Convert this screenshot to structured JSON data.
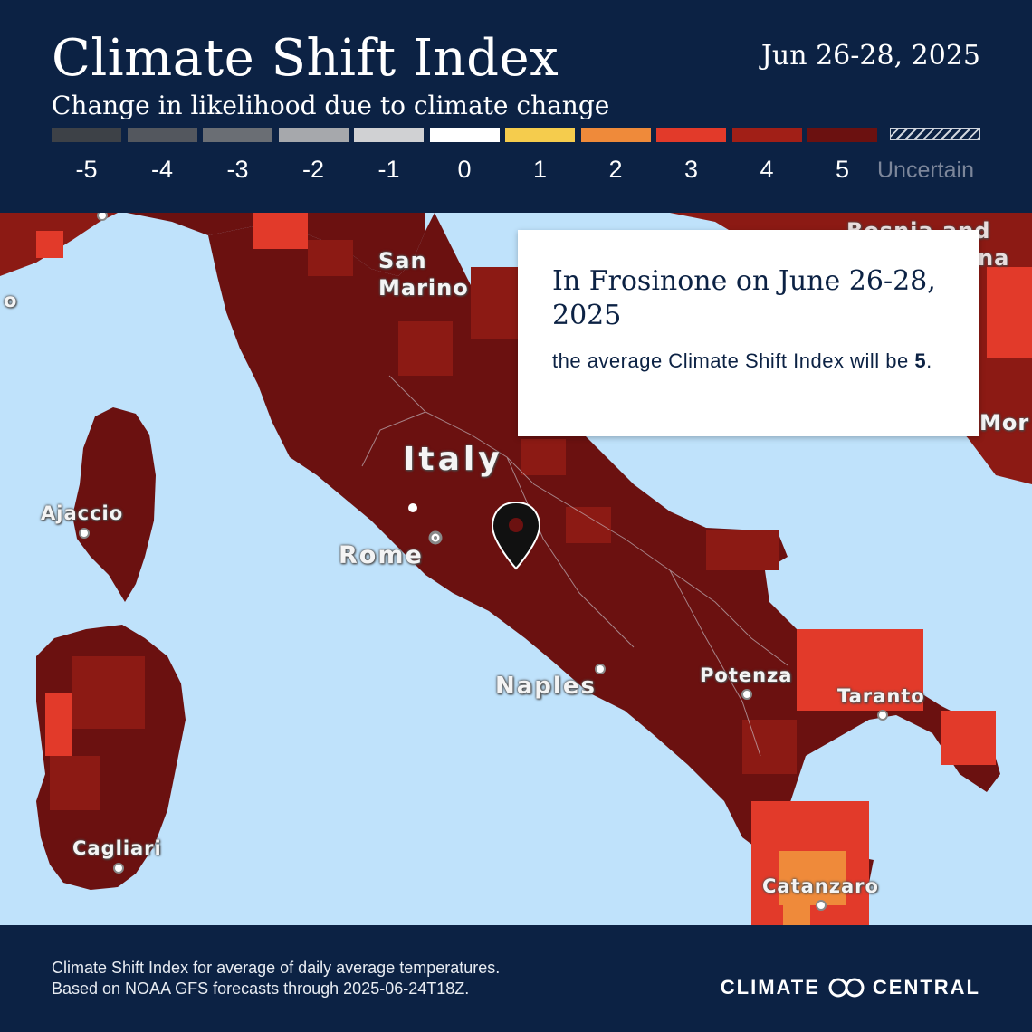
{
  "header": {
    "title": "Climate Shift Index",
    "subtitle": "Change in likelihood due to climate change",
    "date_range": "Jun 26-28, 2025"
  },
  "legend": {
    "items": [
      {
        "label": "-5",
        "color": "#3d4147"
      },
      {
        "label": "-4",
        "color": "#53575e"
      },
      {
        "label": "-3",
        "color": "#6a6e74"
      },
      {
        "label": "-2",
        "color": "#a6a8ac"
      },
      {
        "label": "-1",
        "color": "#d0d1d3"
      },
      {
        "label": "0",
        "color": "#ffffff"
      },
      {
        "label": "1",
        "color": "#f5cc4d"
      },
      {
        "label": "2",
        "color": "#ef8a3a"
      },
      {
        "label": "3",
        "color": "#e23a2a"
      },
      {
        "label": "4",
        "color": "#a11f17"
      },
      {
        "label": "5",
        "color": "#6b1110"
      }
    ],
    "uncertain_label": "Uncertain"
  },
  "map": {
    "colors": {
      "sea": "#bfe2fb",
      "csi5": "#6b1110",
      "csi4": "#8c1a14",
      "csi3": "#e23a2a",
      "csi2": "#ef8a3a"
    },
    "places": {
      "san_marino": "San\nMarino",
      "bosnia": "Bosnia and\nHerzegovina",
      "italy": "Italy",
      "ajaccio": "Ajaccio",
      "rome": "Rome",
      "naples": "Naples",
      "potenza": "Potenza",
      "taranto": "Taranto",
      "cagliari": "Cagliari",
      "catanzaro": "Catanzaro",
      "montenegro_partial": "Mor",
      "left_edge_partial": "o"
    },
    "marker_icon": "location-pin-icon"
  },
  "info_box": {
    "heading": "In Frosinone on June 26-28, 2025",
    "text_prefix": "the average Climate Shift Index will be ",
    "value": "5",
    "text_suffix": "."
  },
  "footer": {
    "line1": "Climate Shift Index for average of daily average temperatures.",
    "line2": "Based on NOAA GFS forecasts through 2025-06-24T18Z.",
    "brand_left": "CLIMATE",
    "brand_right": "CENTRAL",
    "brand_icon": "climate-central-logo-icon"
  }
}
